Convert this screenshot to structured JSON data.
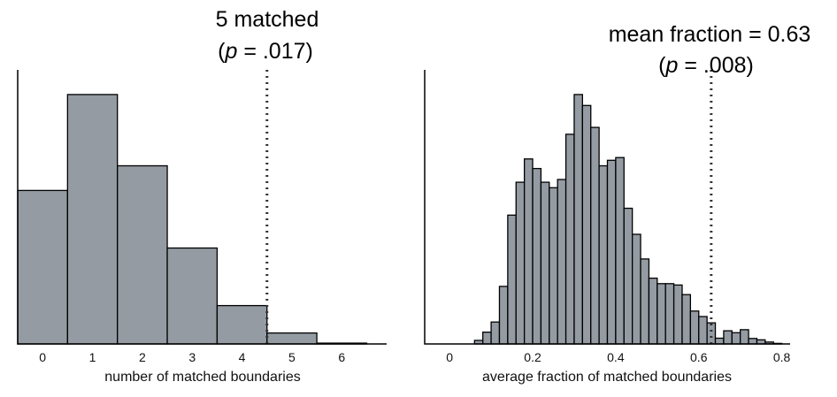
{
  "chart_data": [
    {
      "type": "bar",
      "title": "",
      "xlabel": "number of matched boundaries",
      "ylabel": "",
      "categories": [
        0,
        1,
        2,
        3,
        4,
        5,
        6
      ],
      "values": [
        0.56,
        0.91,
        0.65,
        0.35,
        0.14,
        0.04,
        0.003
      ],
      "value_units": "relative frequency (unlabeled y-axis)",
      "xlim": [
        -0.5,
        6.9
      ],
      "ylim": [
        0,
        1
      ],
      "xticks": [
        "0",
        "1",
        "2",
        "3",
        "4",
        "5",
        "6"
      ],
      "reference_line": {
        "x": 4.5,
        "style": "dotted"
      },
      "annotation": {
        "line1": "5 matched",
        "p_symbol": "p",
        "p_rest": " = .017)"
      },
      "grid": false
    },
    {
      "type": "histogram",
      "title": "",
      "xlabel": "average fraction of matched boundaries",
      "ylabel": "",
      "bin_width": 0.02,
      "bin_start": 0.06,
      "values": [
        0.013,
        0.043,
        0.08,
        0.21,
        0.47,
        0.59,
        0.675,
        0.64,
        0.59,
        0.57,
        0.6,
        0.765,
        0.91,
        0.87,
        0.79,
        0.65,
        0.67,
        0.68,
        0.495,
        0.4,
        0.31,
        0.24,
        0.22,
        0.22,
        0.215,
        0.18,
        0.12,
        0.1,
        0.077,
        0.021,
        0.048,
        0.041,
        0.052,
        0.02,
        0.015,
        0.007,
        0.002
      ],
      "xlim": [
        -0.06,
        0.82
      ],
      "ylim": [
        0,
        1
      ],
      "xticks": [
        "0",
        "0.2",
        "0.4",
        "0.6",
        "0.8"
      ],
      "reference_line": {
        "x": 0.63,
        "style": "dotted"
      },
      "annotation": {
        "line1": "mean fraction = 0.63",
        "p_symbol": "p",
        "p_rest": " = .008)"
      },
      "grid": false
    }
  ]
}
